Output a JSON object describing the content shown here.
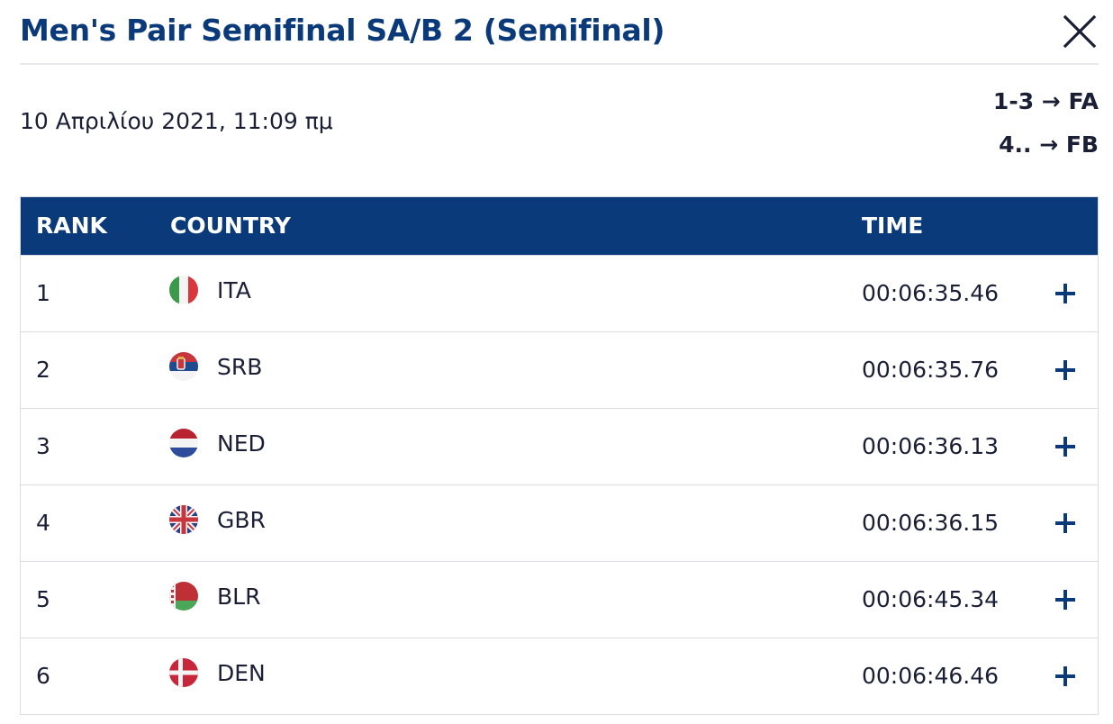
{
  "header": {
    "title": "Men's Pair Semifinal SA/B 2 (Semifinal)",
    "close_icon": "close-icon"
  },
  "meta": {
    "date": "10 Απριλίου 2021, 11:09 πμ",
    "progression": [
      {
        "label": "1-3 → FA"
      },
      {
        "label": "4.. → FB"
      }
    ]
  },
  "colors": {
    "brand_blue": "#0b3a7a",
    "text_dark": "#1a1f36",
    "row_border": "#d9dde3"
  },
  "table": {
    "columns": {
      "rank": "RANK",
      "country": "COUNTRY",
      "time": "TIME"
    },
    "rows": [
      {
        "rank": "1",
        "country": "ITA",
        "time": "00:06:35.46",
        "flag_icon": "italy-flag-icon"
      },
      {
        "rank": "2",
        "country": "SRB",
        "time": "00:06:35.76",
        "flag_icon": "serbia-flag-icon"
      },
      {
        "rank": "3",
        "country": "NED",
        "time": "00:06:36.13",
        "flag_icon": "netherlands-flag-icon"
      },
      {
        "rank": "4",
        "country": "GBR",
        "time": "00:06:36.15",
        "flag_icon": "great-britain-flag-icon"
      },
      {
        "rank": "5",
        "country": "BLR",
        "time": "00:06:45.34",
        "flag_icon": "belarus-flag-icon"
      },
      {
        "rank": "6",
        "country": "DEN",
        "time": "00:06:46.46",
        "flag_icon": "denmark-flag-icon"
      }
    ]
  }
}
